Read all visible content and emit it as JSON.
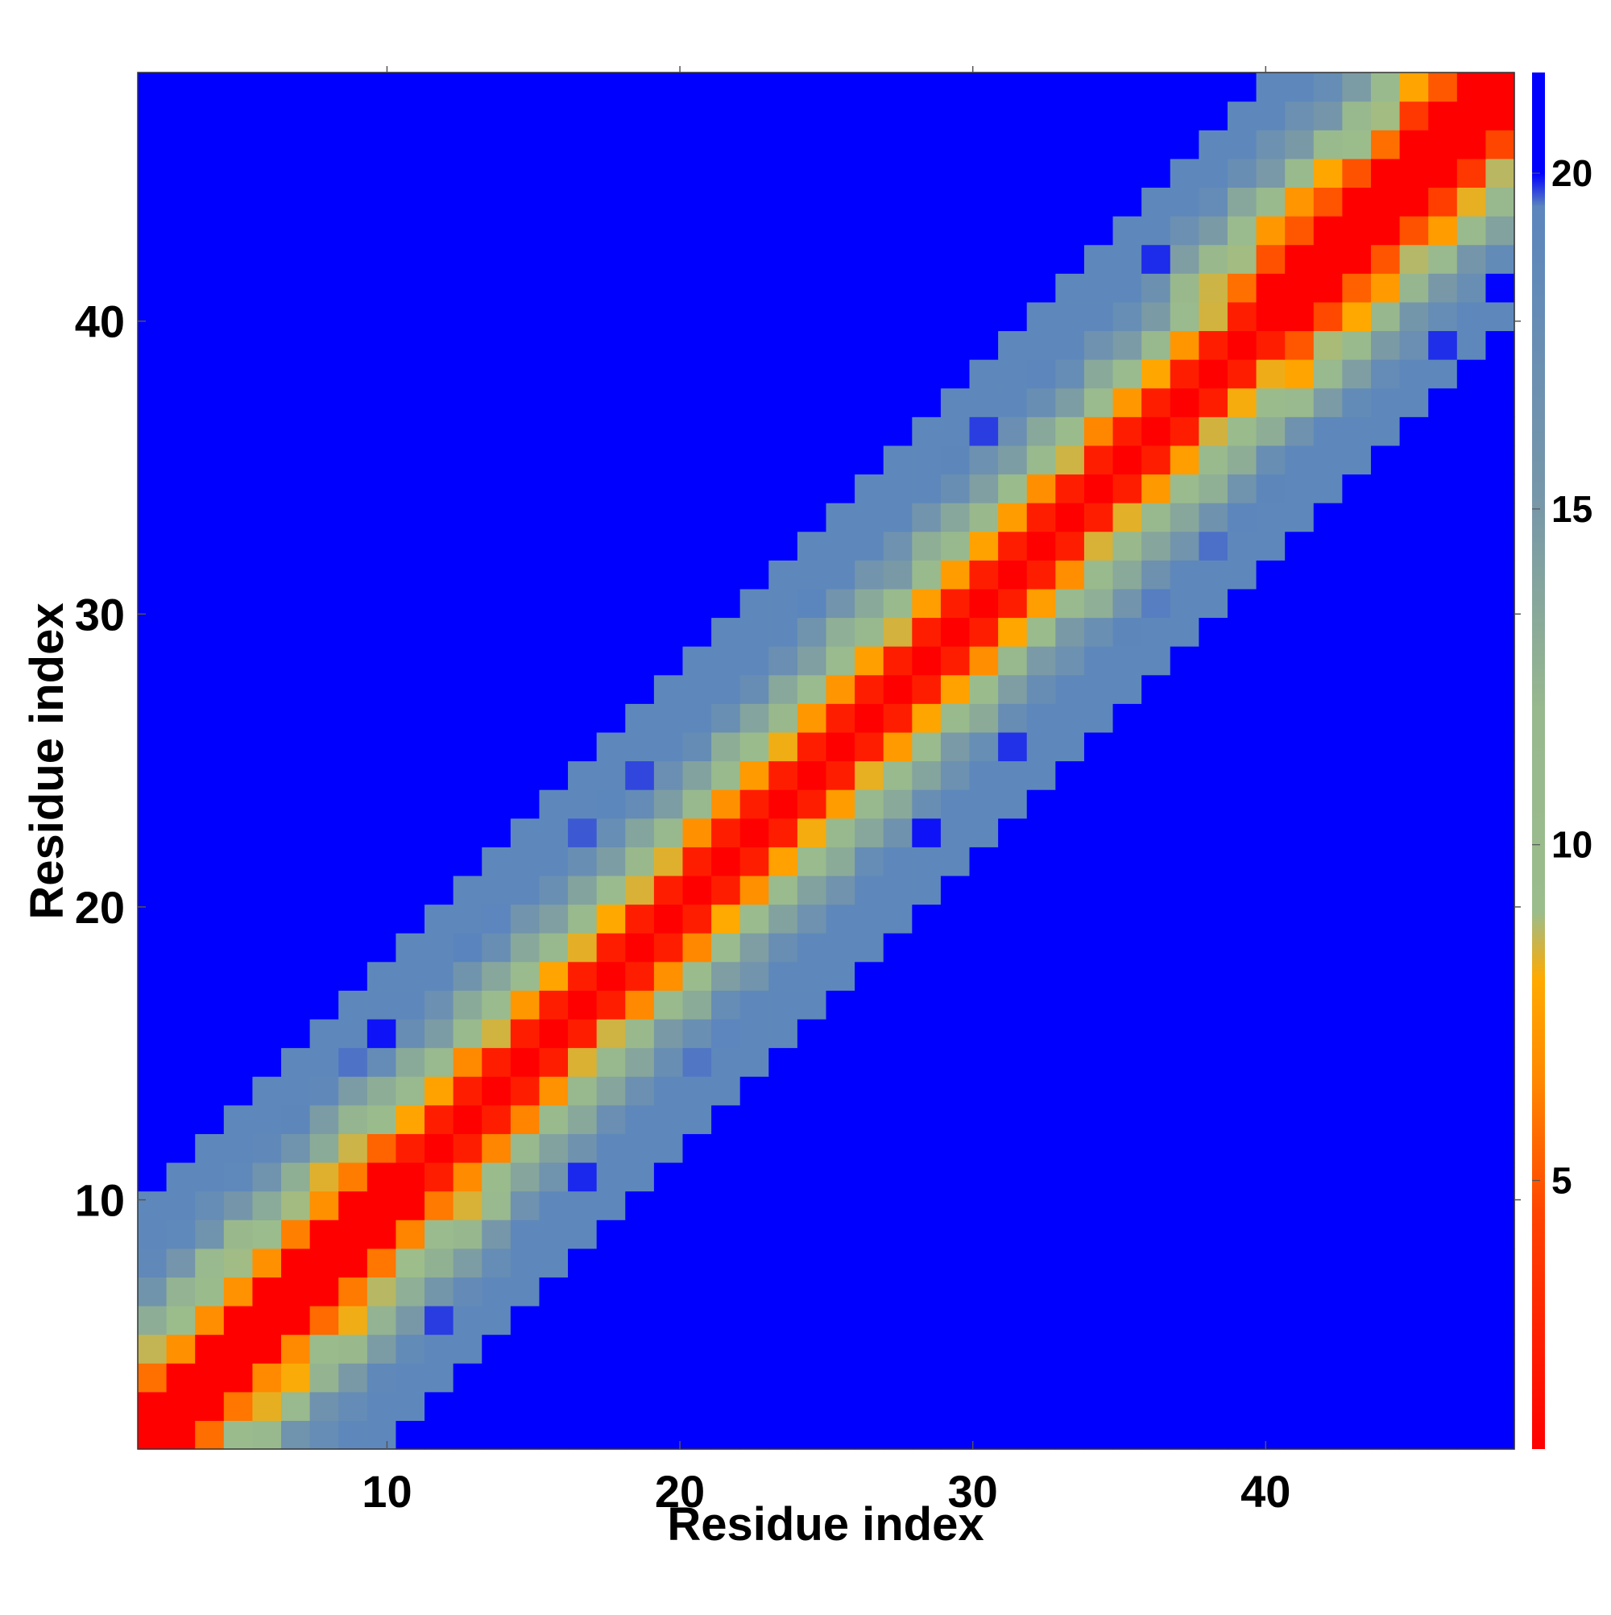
{
  "chart_data": {
    "type": "heatmap",
    "title": "",
    "xlabel": "Residue index",
    "ylabel": "Residue index",
    "x_range": [
      1,
      48
    ],
    "y_range": [
      1,
      48
    ],
    "x_ticks": [
      10,
      20,
      30,
      40
    ],
    "y_ticks": [
      10,
      20,
      30,
      40
    ],
    "grid": false,
    "colorbar": {
      "placement": "right",
      "range": [
        1,
        21.5
      ],
      "ticks": [
        5,
        10,
        15,
        20
      ],
      "stops": [
        {
          "value": 1.0,
          "color": "#ff0000"
        },
        {
          "value": 4.5,
          "color": "#ff4400"
        },
        {
          "value": 6.5,
          "color": "#ff8800"
        },
        {
          "value": 8.0,
          "color": "#ffaa00"
        },
        {
          "value": 9.0,
          "color": "#9bbd8c"
        },
        {
          "value": 12.0,
          "color": "#98b88e"
        },
        {
          "value": 15.0,
          "color": "#7898a8"
        },
        {
          "value": 19.5,
          "color": "#5b86bd"
        },
        {
          "value": 20.0,
          "color": "#0000ff"
        },
        {
          "value": 21.5,
          "color": "#0000ff"
        }
      ]
    },
    "matrix_description": "Symmetric-like residue contact distance map: value grows with |i-j|; red along diagonal (distance small), orange/green bands further out, blue (>20) far from diagonal.",
    "band_model": {
      "diagonal_value": 1,
      "per_residue_step": 3.2,
      "cap_value": 21
    }
  }
}
